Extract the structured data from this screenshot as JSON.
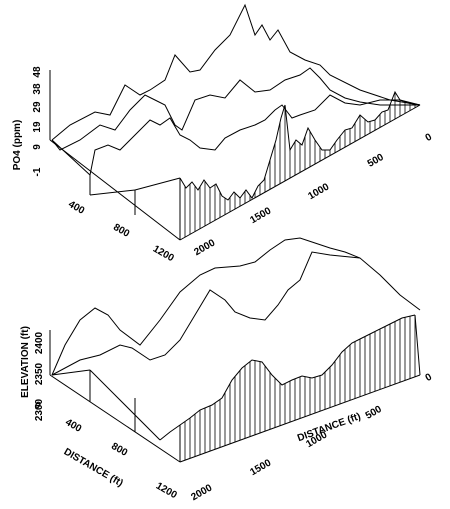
{
  "top_panel": {
    "y_axis_label": "PO4 (ppm)",
    "y_ticks": [
      "-1",
      "9",
      "19",
      "29",
      "38",
      "48"
    ],
    "depth_ticks": [
      "400",
      "800",
      "1200"
    ],
    "distance_ticks": [
      "2000",
      "1500",
      "1000",
      "500",
      "0"
    ]
  },
  "bottom_panel": {
    "y_axis_label": "ELEVATION (ft)",
    "y_ticks": [
      "2300",
      "2350",
      "2400"
    ],
    "depth_ticks": [
      "0",
      "400",
      "800",
      "1200"
    ],
    "depth_label": "DISTANCE (ft)",
    "distance_ticks": [
      "2000",
      "1500",
      "1000",
      "500",
      "0"
    ],
    "distance_label": "DISTANCE (ft)"
  }
}
